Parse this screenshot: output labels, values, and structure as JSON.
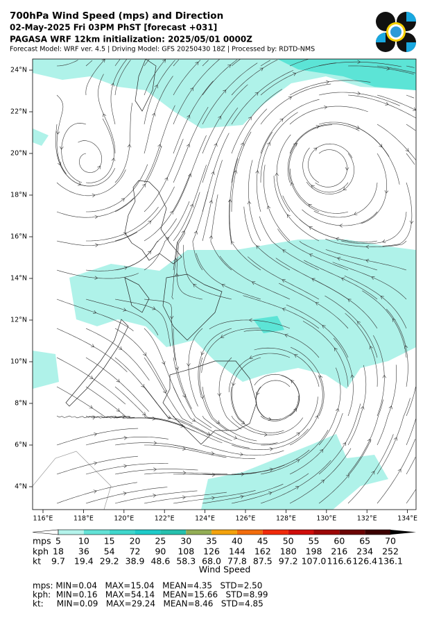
{
  "header": {
    "title": "700hPa Wind Speed (mps) and Direction",
    "valid_time": "02-May-2025 Fri 03PM PhST [forecast +031]",
    "initialization": "PAGASA WRF 12km initialization: 2025/05/01 0000Z",
    "model_info": "Forecast Model: WRF ver. 4.5 | Driving Model: GFS 20250430 18Z | Processed by: RDTD-NMS"
  },
  "map": {
    "lat_labels": [
      "24°N",
      "22°N",
      "20°N",
      "18°N",
      "16°N",
      "14°N",
      "12°N",
      "10°N",
      "8°N",
      "6°N",
      "4°N"
    ],
    "lon_labels": [
      "116°E",
      "118°E",
      "120°E",
      "122°E",
      "124°E",
      "126°E",
      "128°E",
      "130°E",
      "132°E",
      "134°E"
    ]
  },
  "colorbar": {
    "label": "Wind Speed",
    "colors": [
      "#ffffff",
      "#b4f3eb",
      "#63e2d6",
      "#3fd7cc",
      "#1ecbc9",
      "#26c0ad",
      "#93ad55",
      "#f3a20c",
      "#f26c0c",
      "#f02a0a",
      "#cf0d0a",
      "#9c0606",
      "#6c0303",
      "#3c0000",
      "#000000"
    ],
    "rows": [
      {
        "unit": "mps",
        "values": [
          "5",
          "10",
          "15",
          "20",
          "25",
          "30",
          "35",
          "40",
          "45",
          "50",
          "55",
          "60",
          "65",
          "70"
        ]
      },
      {
        "unit": "kph",
        "values": [
          "18",
          "36",
          "54",
          "72",
          "90",
          "108",
          "126",
          "144",
          "162",
          "180",
          "198",
          "216",
          "234",
          "252"
        ]
      },
      {
        "unit": "kt",
        "values": [
          "9.7",
          "19.4",
          "29.2",
          "38.9",
          "48.6",
          "58.3",
          "68.0",
          "77.8",
          "87.5",
          "97.2",
          "107.0",
          "116.6",
          "126.4",
          "136.1"
        ]
      }
    ]
  },
  "stats": [
    "mps: MIN=0.04   MAX=15.04   MEAN=4.35   STD=2.50",
    "kph:  MIN=0.16   MAX=54.14   MEAN=15.66   STD=8.99",
    "kt:     MIN=0.09   MAX=29.24   MEAN=8.46   STD=4.85"
  ]
}
